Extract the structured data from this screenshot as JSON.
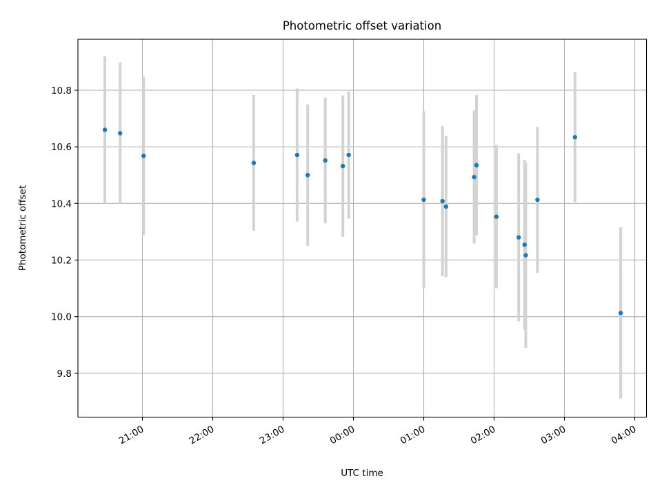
{
  "chart_data": {
    "type": "scatter",
    "title": "Photometric offset variation",
    "xlabel": "UTC time",
    "ylabel": "Photometric offset",
    "x_start_hour": 20,
    "xlim": [
      "20:05",
      "04:10"
    ],
    "ylim": [
      9.645,
      10.98
    ],
    "x_ticks": [
      "21:00",
      "22:00",
      "23:00",
      "00:00",
      "01:00",
      "02:00",
      "03:00",
      "04:00"
    ],
    "y_ticks": [
      9.8,
      10.0,
      10.2,
      10.4,
      10.6,
      10.8
    ],
    "y_tick_labels": [
      "9.8",
      "10.0",
      "10.2",
      "10.4",
      "10.6",
      "10.8"
    ],
    "grid": true,
    "point_color": "#1f77b4",
    "errorbar_color": "#d3d3d3",
    "points": [
      {
        "x": "20:28",
        "y": 10.66,
        "err": 0.26
      },
      {
        "x": "20:41",
        "y": 10.648,
        "err": 0.25
      },
      {
        "x": "21:01",
        "y": 10.568,
        "err": 0.28
      },
      {
        "x": "22:35",
        "y": 10.543,
        "err": 0.24
      },
      {
        "x": "23:12",
        "y": 10.571,
        "err": 0.235
      },
      {
        "x": "23:21",
        "y": 10.5,
        "err": 0.25
      },
      {
        "x": "23:36",
        "y": 10.552,
        "err": 0.222
      },
      {
        "x": "23:51",
        "y": 10.532,
        "err": 0.25
      },
      {
        "x": "23:56",
        "y": 10.571,
        "err": 0.225
      },
      {
        "x": "01:00",
        "y": 10.413,
        "err": 0.313
      },
      {
        "x": "01:16",
        "y": 10.408,
        "err": 0.265
      },
      {
        "x": "01:19",
        "y": 10.389,
        "err": 0.25
      },
      {
        "x": "01:43",
        "y": 10.493,
        "err": 0.235
      },
      {
        "x": "01:45",
        "y": 10.535,
        "err": 0.248
      },
      {
        "x": "02:02",
        "y": 10.353,
        "err": 0.253
      },
      {
        "x": "02:21",
        "y": 10.28,
        "err": 0.297
      },
      {
        "x": "02:26",
        "y": 10.254,
        "err": 0.3
      },
      {
        "x": "02:27",
        "y": 10.217,
        "err": 0.327
      },
      {
        "x": "02:37",
        "y": 10.413,
        "err": 0.258
      },
      {
        "x": "03:09",
        "y": 10.634,
        "err": 0.23
      },
      {
        "x": "03:48",
        "y": 10.013,
        "err": 0.303
      }
    ]
  }
}
